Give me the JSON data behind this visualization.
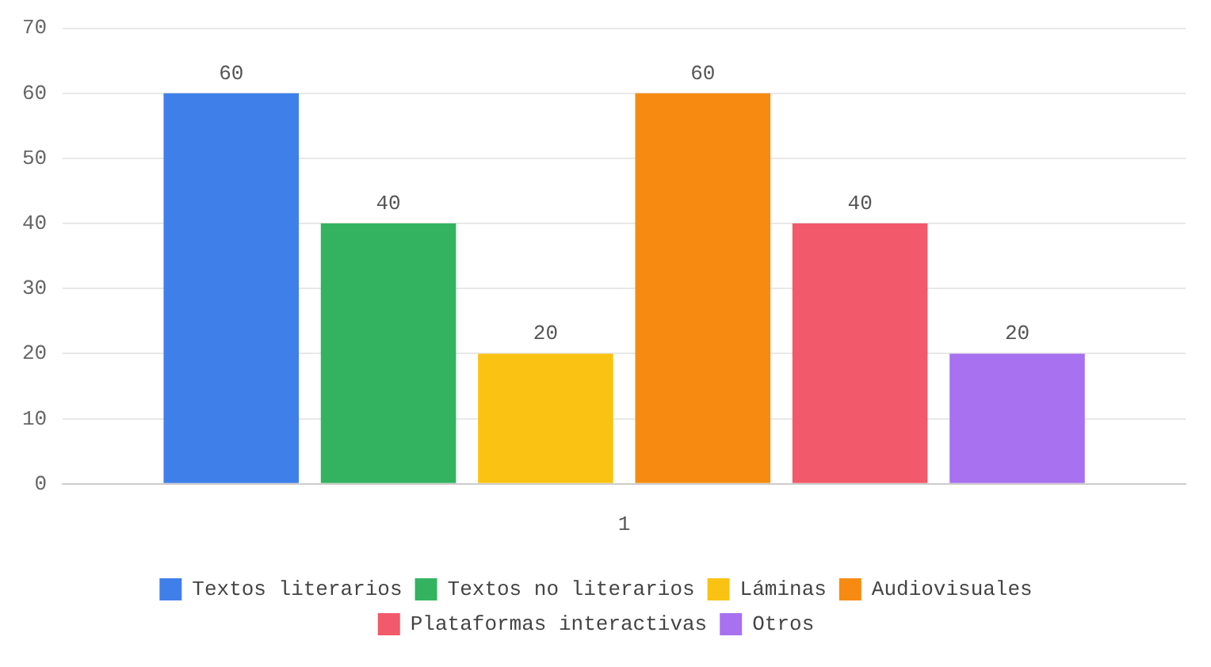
{
  "chart_data": {
    "type": "bar",
    "categories": [
      "1"
    ],
    "series": [
      {
        "name": "Textos literarios",
        "color": "#3f7fea",
        "values": [
          60
        ]
      },
      {
        "name": "Textos no literarios",
        "color": "#33b35f",
        "values": [
          40
        ]
      },
      {
        "name": "Láminas",
        "color": "#fac313",
        "values": [
          20
        ]
      },
      {
        "name": "Audiovisuales",
        "color": "#f78b11",
        "values": [
          60
        ]
      },
      {
        "name": "Plataformas interactivas",
        "color": "#f2596a",
        "values": [
          40
        ]
      },
      {
        "name": "Otros",
        "color": "#a871ef",
        "values": [
          20
        ]
      }
    ],
    "ylim": [
      0,
      70
    ],
    "yticks": [
      0,
      10,
      20,
      30,
      40,
      50,
      60,
      70
    ],
    "grid": "y",
    "legend": "bottom",
    "data_labels": true
  }
}
